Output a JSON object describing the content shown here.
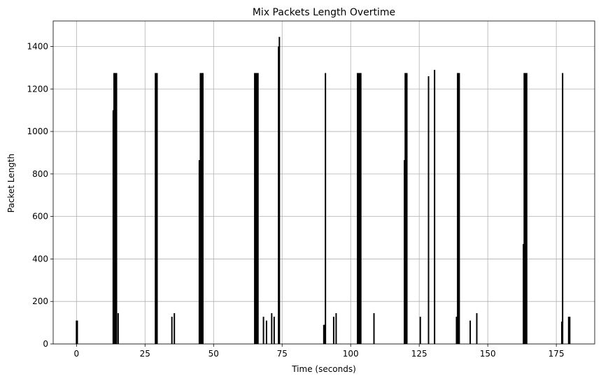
{
  "chart_data": {
    "type": "bar",
    "title": "Mix Packets Length Overtime",
    "xlabel": "Time (seconds)",
    "ylabel": "Packet Length",
    "xlim": [
      -8.5,
      189
    ],
    "ylim": [
      0,
      1520
    ],
    "xticks": [
      0,
      25,
      50,
      75,
      100,
      125,
      150,
      175
    ],
    "yticks": [
      0,
      200,
      400,
      600,
      800,
      1000,
      1200,
      1400
    ],
    "grid": true,
    "bar_color": "#000000",
    "bar_width": 0.5,
    "x": [
      0,
      0.3,
      13.4,
      13.7,
      14.0,
      14.3,
      14.6,
      15.2,
      28.8,
      29.1,
      29.4,
      34.8,
      35.7,
      44.8,
      45.2,
      45.5,
      45.8,
      46.1,
      65.0,
      65.3,
      65.6,
      65.9,
      66.2,
      68.2,
      69.3,
      71.2,
      72.1,
      73.7,
      74.0,
      90.2,
      90.5,
      90.8,
      93.8,
      94.7,
      102.5,
      102.8,
      103.1,
      103.4,
      103.7,
      108.5,
      119.6,
      119.9,
      120.2,
      120.5,
      125.4,
      128.4,
      130.6,
      138.6,
      139.0,
      139.3,
      139.6,
      143.6,
      146.0,
      163.0,
      163.3,
      163.6,
      163.9,
      164.2,
      177.0,
      177.3,
      179.5,
      179.9
    ],
    "values": [
      110,
      110,
      1100,
      1275,
      1275,
      1275,
      1275,
      145,
      1275,
      1275,
      1275,
      128,
      145,
      865,
      1275,
      1275,
      1275,
      1275,
      1275,
      1275,
      1275,
      1275,
      1275,
      128,
      110,
      145,
      128,
      1400,
      1445,
      90,
      90,
      1275,
      128,
      145,
      1275,
      1275,
      1275,
      1275,
      1275,
      145,
      865,
      1275,
      1275,
      1275,
      128,
      1260,
      1290,
      128,
      1275,
      1275,
      1275,
      110,
      145,
      470,
      1275,
      1275,
      1275,
      1275,
      105,
      1275,
      128,
      128
    ]
  }
}
